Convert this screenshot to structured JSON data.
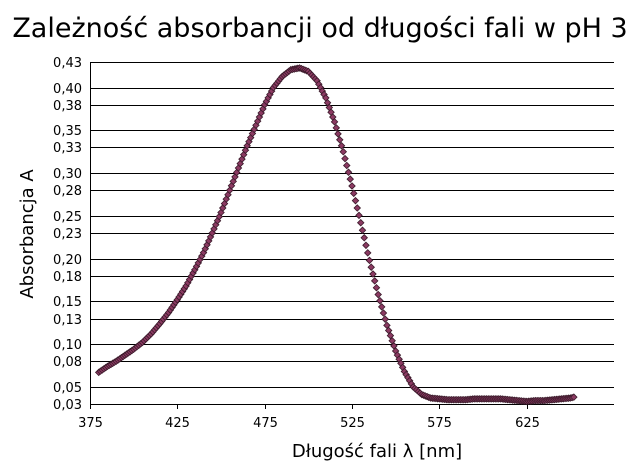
{
  "chart_data": {
    "type": "scatter",
    "title": "Zależność absorbancji od długości fali w pH 3",
    "xlabel": "Długość fali λ [nm]",
    "ylabel": "Absorbancja A",
    "xlim": [
      375,
      675
    ],
    "ylim": [
      0.03,
      0.43
    ],
    "x_ticks": [
      375,
      425,
      475,
      525,
      575,
      625
    ],
    "x_tick_labels": [
      "375",
      "425",
      "475",
      "525",
      "575",
      "625"
    ],
    "y_ticks": [
      0.03,
      0.05,
      0.08,
      0.1,
      0.13,
      0.15,
      0.18,
      0.2,
      0.23,
      0.25,
      0.28,
      0.3,
      0.33,
      0.35,
      0.38,
      0.4,
      0.43
    ],
    "y_tick_labels": [
      "0,03",
      "0,05",
      "0,08",
      "0,10",
      "0,13",
      "0,15",
      "0,18",
      "0,20",
      "0,23",
      "0,25",
      "0,28",
      "0,30",
      "0,33",
      "0,35",
      "0,38",
      "0,40",
      "0,43"
    ],
    "grid": "horizontal",
    "marker": "diamond",
    "marker_color": "#8b3a62",
    "series": [
      {
        "x": [
          380,
          385,
          390,
          395,
          400,
          405,
          410,
          415,
          420,
          425,
          430,
          435,
          440,
          445,
          450,
          455,
          460,
          465,
          470,
          475,
          480,
          485,
          490,
          495,
          500,
          505,
          510,
          515,
          520,
          525,
          530,
          535,
          540,
          545,
          550,
          555,
          560,
          565,
          570,
          575,
          580,
          585,
          590,
          595,
          600,
          605,
          610,
          615,
          620,
          625,
          630,
          635,
          640,
          645,
          650,
          652
        ],
        "y": [
          0.067,
          0.074,
          0.08,
          0.087,
          0.094,
          0.102,
          0.112,
          0.124,
          0.137,
          0.152,
          0.168,
          0.187,
          0.207,
          0.23,
          0.254,
          0.28,
          0.306,
          0.332,
          0.356,
          0.38,
          0.4,
          0.413,
          0.421,
          0.423,
          0.419,
          0.408,
          0.388,
          0.36,
          0.325,
          0.285,
          0.242,
          0.198,
          0.158,
          0.122,
          0.092,
          0.068,
          0.05,
          0.041,
          0.037,
          0.036,
          0.035,
          0.035,
          0.035,
          0.036,
          0.036,
          0.036,
          0.036,
          0.035,
          0.034,
          0.033,
          0.034,
          0.034,
          0.035,
          0.036,
          0.037,
          0.038
        ]
      }
    ]
  }
}
